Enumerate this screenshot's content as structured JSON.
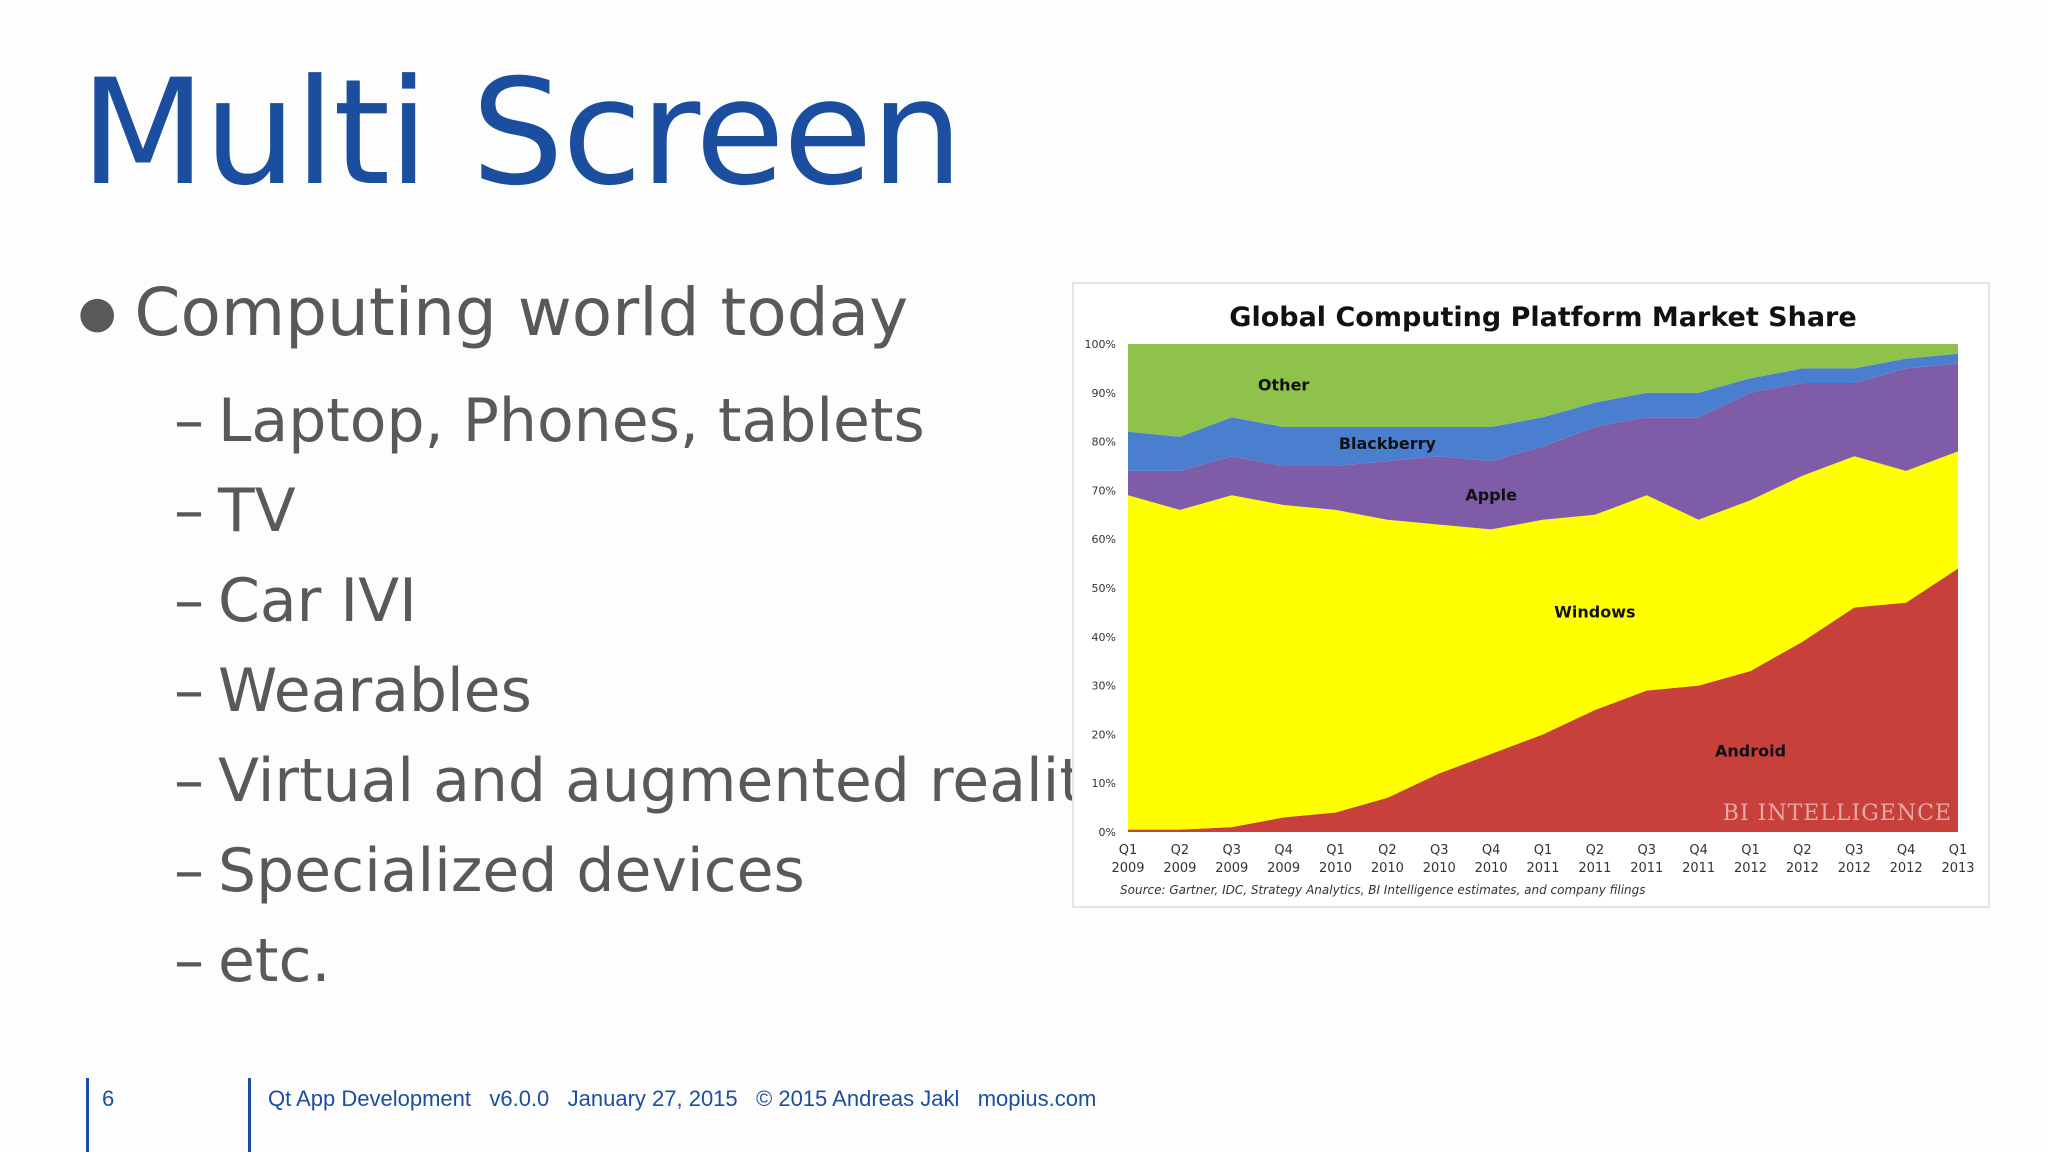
{
  "slide": {
    "title": "Multi Screen",
    "bullet": "Computing world today",
    "subitems": [
      "Laptop, Phones, tablets",
      "TV",
      "Car IVI",
      "Wearables",
      "Virtual and augmented reality",
      "Specialized devices",
      "etc."
    ]
  },
  "footer": {
    "page": "6",
    "course": "Qt App Development",
    "version": "v6.0.0",
    "date": "January 27, 2015",
    "copyright": "© 2015 Andreas Jakl",
    "site": "mopius.com"
  },
  "chart_data": {
    "type": "area",
    "title": "Global Computing Platform Market Share",
    "source": "Source: Gartner, IDC, Strategy Analytics, BI Intelligence estimates, and company filings",
    "watermark": "BI INTELLIGENCE",
    "categories": [
      "Q1 2009",
      "Q2 2009",
      "Q3 2009",
      "Q4 2009",
      "Q1 2010",
      "Q2 2010",
      "Q3 2010",
      "Q4 2010",
      "Q1 2011",
      "Q2 2011",
      "Q3 2011",
      "Q4 2011",
      "Q1 2012",
      "Q2 2012",
      "Q3 2012",
      "Q4 2012",
      "Q1 2013"
    ],
    "yticks": [
      "0%",
      "10%",
      "20%",
      "30%",
      "40%",
      "50%",
      "60%",
      "70%",
      "80%",
      "90%",
      "100%"
    ],
    "ylim": [
      0,
      100
    ],
    "stacked": true,
    "series": [
      {
        "name": "Android",
        "color": "#c8403c",
        "values": [
          0.5,
          0.5,
          1,
          3,
          4,
          7,
          12,
          16,
          20,
          25,
          29,
          30,
          33,
          39,
          46,
          47,
          54
        ]
      },
      {
        "name": "Windows",
        "color": "#ffff00",
        "values": [
          68.5,
          65.5,
          68,
          64,
          62,
          57,
          51,
          46,
          44,
          40,
          40,
          34,
          35,
          34,
          31,
          27,
          24
        ]
      },
      {
        "name": "Apple",
        "color": "#7f5ca8",
        "values": [
          5,
          8,
          8,
          8,
          9,
          12,
          14,
          14,
          15,
          18,
          16,
          21,
          22,
          19,
          15,
          21,
          18
        ]
      },
      {
        "name": "Blackberry",
        "color": "#4a7fcf",
        "values": [
          8,
          7,
          8,
          8,
          8,
          7,
          6,
          7,
          6,
          5,
          5,
          5,
          3,
          3,
          3,
          2,
          2
        ]
      },
      {
        "name": "Other",
        "color": "#8fc24b",
        "values": [
          18,
          19,
          15,
          17,
          17,
          17,
          17,
          17,
          15,
          12,
          10,
          10,
          7,
          5,
          5,
          3,
          2
        ]
      }
    ],
    "labels": [
      {
        "text": "Other",
        "series": "Other",
        "index": 3
      },
      {
        "text": "Blackberry",
        "series": "Blackberry",
        "index": 5
      },
      {
        "text": "Apple",
        "series": "Apple",
        "index": 7
      },
      {
        "text": "Windows",
        "series": "Windows",
        "index": 9
      },
      {
        "text": "Android",
        "series": "Android",
        "index": 12
      }
    ]
  }
}
